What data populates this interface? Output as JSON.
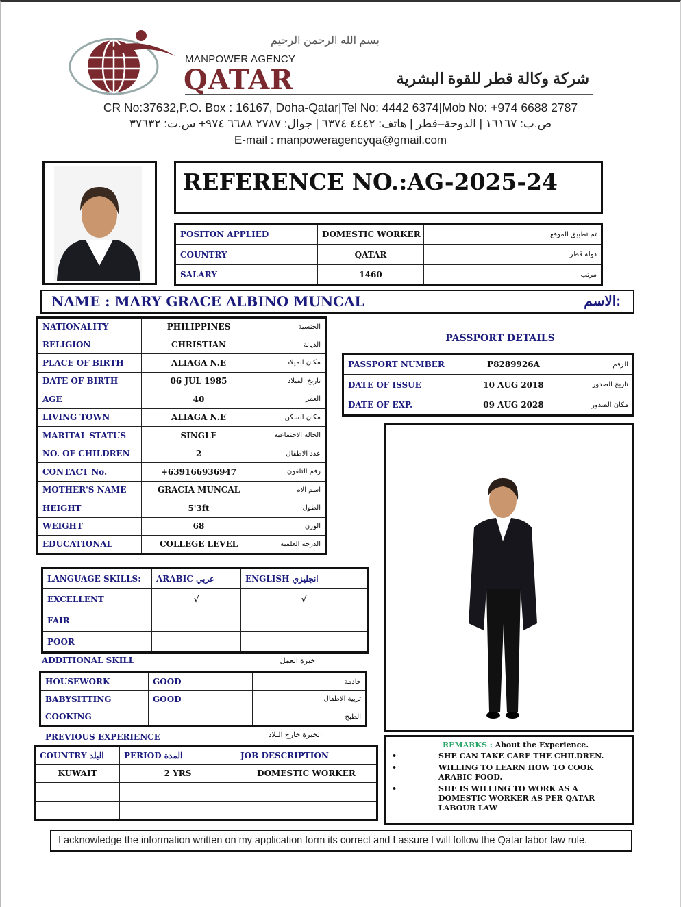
{
  "header": {
    "bismillah": "بسم الله الرحمن الرحيم",
    "agency_small": "MANPOWER AGENCY",
    "agency_big": "QATAR",
    "agency_arabic": "شركة وكالة قطر للقوة البشرية",
    "contact_en": "CR No:37632,P.O. Box : 16167, Doha-Qatar|Tel No: 4442 6374|Mob No: +974 6688 2787",
    "contact_ar": "ص.ب: ١٦١٦٧ | الدوحة–قطر | هاتف: ٤٤٤٢ ٦٣٧٤ | جوال: ٢٧٨٧ ٦٦٨٨ ٩٧٤+ س.ت: ٣٧٦٣٢",
    "email": "E-mail : manpoweragencyqa@gmail.com",
    "brand_color": "#7a2a2e"
  },
  "reference": "REFERENCE NO.:AG-2025-24",
  "position_table": [
    [
      "POSITON APPLIED",
      "DOMESTIC WORKER",
      "تم تطبيق الموقع"
    ],
    [
      "COUNTRY",
      "QATAR",
      "دولة قطر"
    ],
    [
      "SALARY",
      "1460",
      "مرتب"
    ]
  ],
  "name": {
    "label": "NAME : MARY GRACE ALBINO MUNCAL",
    "arabic": "الاسم:"
  },
  "personal": [
    [
      "NATIONALITY",
      "PHILIPPINES",
      "الجنسية"
    ],
    [
      "RELIGION",
      "CHRISTIAN",
      "الديانة"
    ],
    [
      "PLACE OF BIRTH",
      "ALIAGA N.E",
      "مكان الميلاد"
    ],
    [
      "DATE OF BIRTH",
      "06 JUL 1985",
      "تاريخ الميلاد"
    ],
    [
      "AGE",
      "40",
      "العمر"
    ],
    [
      "LIVING TOWN",
      "ALIAGA N.E",
      "مكان السكن"
    ],
    [
      "MARITAL STATUS",
      "SINGLE",
      "الحالة الاجتماعية"
    ],
    [
      "NO. OF CHILDREN",
      "2",
      "عدد الاطفال"
    ],
    [
      "CONTACT No.",
      "+639166936947",
      "رقم التلفون"
    ],
    [
      "MOTHER'S NAME",
      "GRACIA MUNCAL",
      "اسم الام"
    ],
    [
      "HEIGHT",
      "5'3ft",
      "الطول"
    ],
    [
      "WEIGHT",
      "68",
      "الوزن"
    ],
    [
      "EDUCATIONAL",
      "COLLEGE LEVEL",
      "الدرجة العلمية"
    ]
  ],
  "passport": {
    "title": "PASSPORT DETAILS",
    "rows": [
      [
        "PASSPORT NUMBER",
        "P8289926A",
        "الرقم"
      ],
      [
        "DATE OF ISSUE",
        "10 AUG 2018",
        "تاريخ الصدور"
      ],
      [
        "DATE OF EXP.",
        "09 AUG 2028",
        "مكان الصدور"
      ]
    ]
  },
  "language": {
    "header": [
      "LANGUAGE SKILLS:",
      "ARABIC عربي",
      "ENGLISH انجليزي"
    ],
    "rows": [
      [
        "EXCELLENT",
        "√",
        "√"
      ],
      [
        "FAIR",
        "",
        ""
      ],
      [
        "POOR",
        "",
        ""
      ]
    ]
  },
  "additional": {
    "label": "ADDITIONAL SKILL",
    "arabic": "خبرة العمل",
    "rows": [
      [
        "HOUSEWORK",
        "GOOD",
        "خادمة"
      ],
      [
        "BABYSITTING",
        "GOOD",
        "تربية الاطفال"
      ],
      [
        "COOKING",
        "",
        "الطبخ"
      ]
    ]
  },
  "experience": {
    "label": "PREVIOUS EXPERIENCE",
    "arabic": "الخبرة خارج البلاد",
    "header": [
      "COUNTRY البلد",
      "PERIOD المدة",
      "JOB DESCRIPTION"
    ],
    "rows": [
      [
        "KUWAIT",
        "2 YRS",
        "DOMESTIC WORKER"
      ],
      [
        "",
        "",
        ""
      ],
      [
        "",
        "",
        ""
      ]
    ]
  },
  "remarks": {
    "label": "REMARKS :",
    "title": "About the Experience.",
    "label_color": "#2aa56a",
    "items": [
      "SHE CAN TAKE CARE THE CHILDREN.",
      "WILLING TO LEARN HOW TO COOK ARABIC FOOD.",
      "SHE IS WILLING TO WORK AS A DOMESTIC WORKER AS PER QATAR LABOUR LAW"
    ]
  },
  "acknowledgement": "I acknowledge the information written on my application form its correct and I assure I will follow the Qatar labor law rule."
}
